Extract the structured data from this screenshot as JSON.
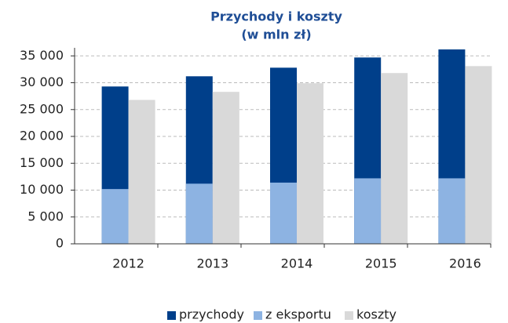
{
  "chart_data": {
    "type": "bar",
    "title": [
      "Przychody i koszty",
      "(w mln zł)"
    ],
    "categories": [
      "2012",
      "2013",
      "2014",
      "2015",
      "2016"
    ],
    "series": [
      {
        "name": "przychody",
        "color": "#003f8a",
        "values": [
          29300,
          31200,
          32800,
          34700,
          36200
        ]
      },
      {
        "name": "z eksportu",
        "color": "#8db3e2",
        "values": [
          10200,
          11200,
          11400,
          12200,
          12200
        ]
      },
      {
        "name": "koszty",
        "color": "#d9d9d9",
        "values": [
          26800,
          28300,
          29900,
          31800,
          33100
        ]
      }
    ],
    "ylim": [
      0,
      36500
    ],
    "yticks": [
      0,
      {
        "value": 5000,
        "label": "5 000"
      },
      {
        "value": 10000,
        "label": "10 000"
      },
      {
        "value": 15000,
        "label": "15 000"
      },
      {
        "value": 20000,
        "label": "20 000"
      },
      {
        "value": 25000,
        "label": "25 000"
      },
      {
        "value": 30000,
        "label": "30 000"
      },
      {
        "value": 35000,
        "label": "35 000"
      }
    ],
    "grid": true,
    "legend": "bottom"
  }
}
